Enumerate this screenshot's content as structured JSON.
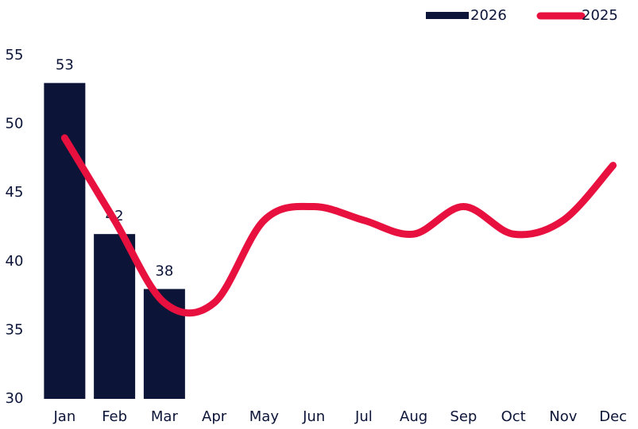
{
  "chart_data": {
    "type": "combo",
    "categories": [
      "Jan",
      "Feb",
      "Mar",
      "Apr",
      "May",
      "Jun",
      "Jul",
      "Aug",
      "Sep",
      "Oct",
      "Nov",
      "Dec"
    ],
    "series": [
      {
        "name": "2026",
        "type": "bar",
        "color": "#0c1538",
        "values": [
          53,
          42,
          38,
          null,
          null,
          null,
          null,
          null,
          null,
          null,
          null,
          null
        ]
      },
      {
        "name": "2025",
        "type": "line",
        "color": "#e8103e",
        "values": [
          49,
          43,
          37,
          37,
          43,
          44,
          43,
          42,
          44,
          42,
          43,
          47
        ]
      }
    ],
    "ylim": [
      30,
      55
    ],
    "yticks": [
      30,
      35,
      40,
      45,
      50,
      55
    ],
    "grid": false,
    "legend": "top-right"
  }
}
